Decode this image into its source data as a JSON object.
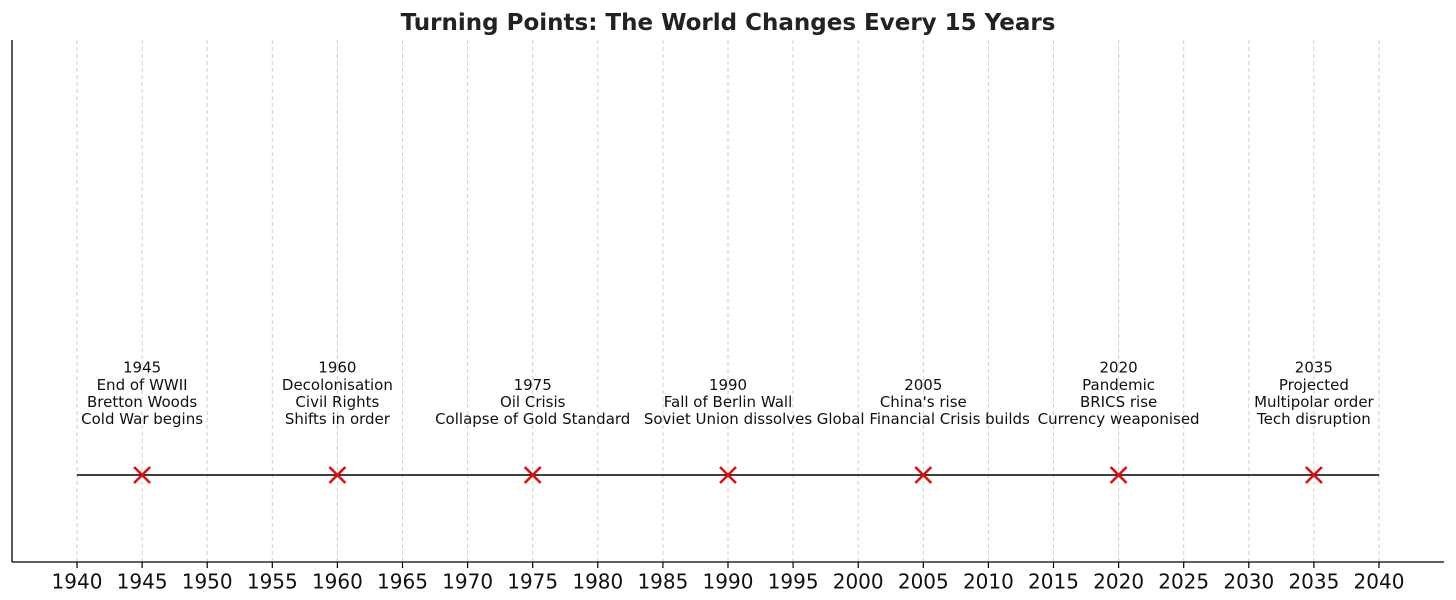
{
  "chart_data": {
    "type": "timeline",
    "title": "Turning Points: The World Changes Every 15 Years",
    "xlabel": "",
    "ylabel": "",
    "xlim": [
      1935,
      2050
    ],
    "grid": true,
    "x_ticks": [
      1940,
      1945,
      1950,
      1955,
      1960,
      1965,
      1970,
      1975,
      1980,
      1985,
      1990,
      1995,
      2000,
      2005,
      2010,
      2015,
      2020,
      2025,
      2030,
      2035,
      2040
    ],
    "timeline_span": [
      1940,
      2040
    ],
    "marker_color": "#dd1111",
    "points": [
      {
        "year": 1945,
        "lines": [
          "1945",
          "End of WWII",
          "Bretton Woods",
          "Cold War begins"
        ]
      },
      {
        "year": 1960,
        "lines": [
          "1960",
          "Decolonisation",
          "Civil Rights",
          "Shifts in order"
        ]
      },
      {
        "year": 1975,
        "lines": [
          "1975",
          "Oil Crisis",
          "Collapse of Gold Standard"
        ]
      },
      {
        "year": 1990,
        "lines": [
          "1990",
          "Fall of Berlin Wall",
          "Soviet Union dissolves"
        ]
      },
      {
        "year": 2005,
        "lines": [
          "2005",
          "China's rise",
          "Global Financial Crisis builds"
        ]
      },
      {
        "year": 2020,
        "lines": [
          "2020",
          "Pandemic",
          "BRICS rise",
          "Currency weaponised"
        ]
      },
      {
        "year": 2035,
        "lines": [
          "2035",
          "Projected",
          "Multipolar order",
          "Tech disruption"
        ]
      }
    ]
  }
}
